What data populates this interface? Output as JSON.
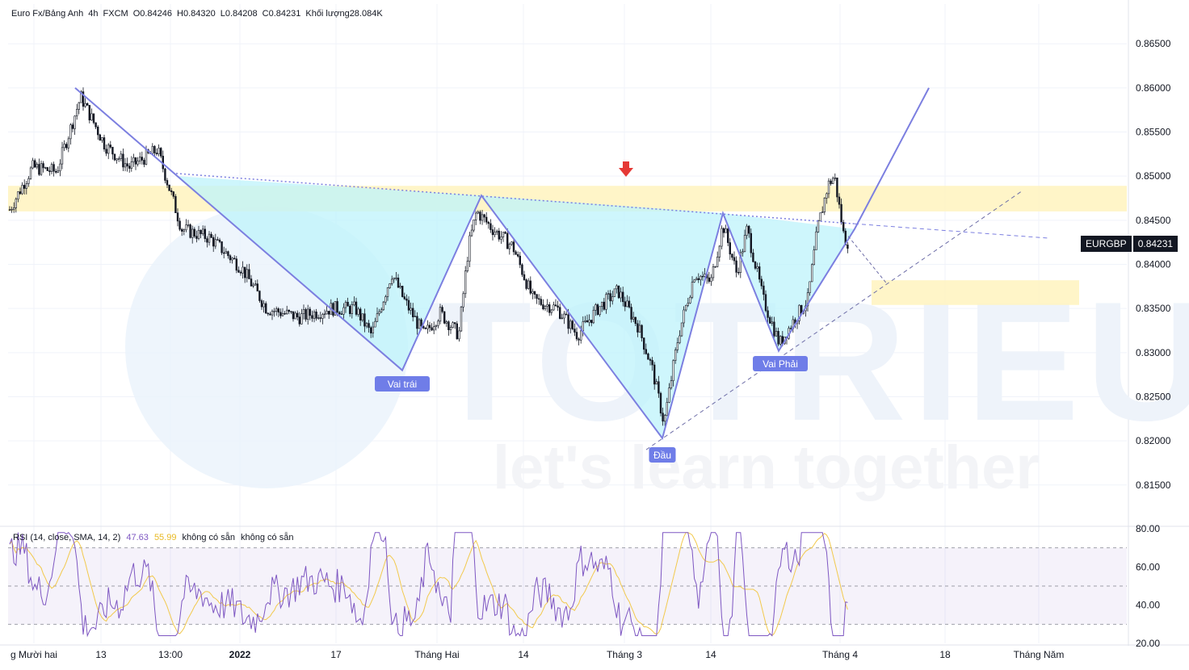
{
  "header": {
    "symbol": "Euro Fx/Bảng Anh",
    "interval": "4h",
    "exchange": "FXCM",
    "open": "O0.84246",
    "high": "H0.84320",
    "low": "L0.84208",
    "close": "C0.84231",
    "volume": "Khối lượng28.084K"
  },
  "price_badge": {
    "symbol": "EURGBP",
    "price": "0.84231"
  },
  "rsi_header": {
    "name": "RSI (14, close, SMA, 14, 2)",
    "rsi_value": "47.63",
    "ma_value": "55.99",
    "na1": "không có sẵn",
    "na2": "không có sẵn"
  },
  "watermark": {
    "brand": "TOTRIEU",
    "tagline": "let's learn together"
  },
  "colors": {
    "candle": "#131722",
    "pattern_fill": "#bdf3fb",
    "pattern_line": "#7c7fe0",
    "zone": "#fff4c2",
    "rsi_line": "#7e57c2",
    "rsi_ma": "#f2c94c",
    "arrow": "#e53935",
    "label_bg": "#6f7de8"
  },
  "chart_data": {
    "type": "candlestick",
    "price_axis": {
      "ticks": [
        "0.86500",
        "0.86000",
        "0.85500",
        "0.85000",
        "0.84500",
        "0.84000",
        "0.83500",
        "0.83000",
        "0.82500",
        "0.82000",
        "0.81500"
      ],
      "range": [
        0.8105,
        0.8695
      ]
    },
    "time_axis": {
      "labels": [
        "g Mười hai",
        "13",
        "13:00",
        "2022",
        "17",
        "Tháng Hai",
        "14",
        "Tháng 3",
        "14",
        "Tháng 4",
        "18",
        "Tháng Năm"
      ]
    },
    "pattern": {
      "name": "inverse head and shoulders",
      "labels": {
        "left_shoulder": "Vai trái",
        "head": "Đầu",
        "right_shoulder": "Vai Phải"
      },
      "points_price": {
        "start": 0.85,
        "left_shoulder": 0.828,
        "peak1": 0.8478,
        "head": 0.8203,
        "peak2": 0.8458,
        "right_shoulder": 0.8302,
        "breakout": 0.844
      },
      "top_price": 0.86,
      "target_price": 0.86,
      "neckline_start": 0.8503,
      "neckline_end": 0.8446
    },
    "zones": [
      {
        "name": "resistance",
        "from": 0.846,
        "to": 0.8489
      },
      {
        "name": "retest",
        "from": 0.8354,
        "to": 0.8382
      }
    ],
    "last_price": 0.84231,
    "rsi": {
      "ticks": [
        "80.00",
        "60.00",
        "40.00",
        "20.00"
      ],
      "levels": [
        70,
        50,
        30
      ],
      "range": [
        20,
        80
      ],
      "last": 47.63,
      "ma_last": 55.99
    }
  }
}
